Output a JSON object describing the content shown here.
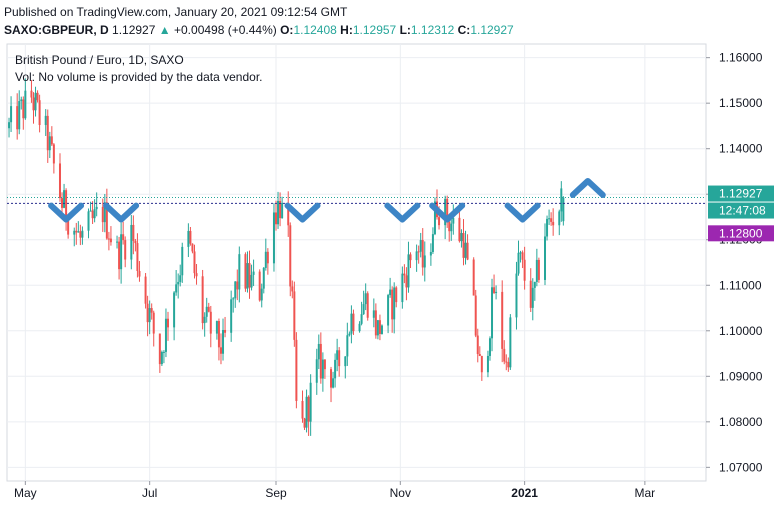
{
  "header": {
    "published": "Published on TradingView.com, January 20, 2021 09:12:54 GMT",
    "symbol": "SAXO:GBPEUR, D",
    "last": "1.12927",
    "change_arrow": "▲",
    "change": "+0.00498 (+0.44%)",
    "o_label": "O:",
    "o_value": "1.12408",
    "h_label": "H:",
    "h_value": "1.12957",
    "l_label": "L:",
    "l_value": "1.12312",
    "c_label": "C:",
    "c_value": "1.12927"
  },
  "colors": {
    "up": "#26a69a",
    "down": "#ef5350",
    "marker": "#3d85c6",
    "grid": "#ebeef2",
    "resistance": "#2a2e8f",
    "last_price_line": "#26a69a",
    "badge_purple": "#9c27b0"
  },
  "chart_data": {
    "type": "candlestick",
    "title": "British Pound / Euro, 1D, SAXO",
    "subtitle": "Vol: No volume is provided by the data vendor.",
    "ylim": [
      1.067,
      1.163
    ],
    "y_ticks": [
      "1.16000",
      "1.15000",
      "1.14000",
      "1.13000",
      "1.12000",
      "1.11000",
      "1.10000",
      "1.09000",
      "1.08000",
      "1.07000"
    ],
    "y_tick_values": [
      1.16,
      1.15,
      1.14,
      1.13,
      1.12,
      1.11,
      1.1,
      1.09,
      1.08,
      1.07
    ],
    "x_ticks": [
      "May",
      "Jul",
      "Sep",
      "Nov",
      "2021",
      "Mar"
    ],
    "x_tick_dates": [
      "2020-05-01",
      "2020-07-01",
      "2020-09-01",
      "2020-11-01",
      "2021-01-01",
      "2021-03-01"
    ],
    "x_range": [
      "2020-04-22",
      "2021-03-31"
    ],
    "last_price": "1.12927",
    "last_price_value": 1.12927,
    "countdown": "12:47:08",
    "resistance_label": "1.12800",
    "resistance_value": 1.128,
    "grid": true,
    "pivots": [
      {
        "date": "2020-04-23",
        "price": 1.1445
      },
      {
        "date": "2020-05-04",
        "price": 1.1515
      },
      {
        "date": "2020-05-12",
        "price": 1.142
      },
      {
        "date": "2020-05-19",
        "price": 1.128
      },
      {
        "date": "2020-05-28",
        "price": 1.12
      },
      {
        "date": "2020-06-08",
        "price": 1.1265
      },
      {
        "date": "2020-06-15",
        "price": 1.117
      },
      {
        "date": "2020-06-22",
        "price": 1.122
      },
      {
        "date": "2020-06-29",
        "price": 1.107
      },
      {
        "date": "2020-07-06",
        "price": 1.094
      },
      {
        "date": "2020-07-13",
        "price": 1.11
      },
      {
        "date": "2020-07-20",
        "price": 1.12
      },
      {
        "date": "2020-07-27",
        "price": 1.103
      },
      {
        "date": "2020-08-06",
        "price": 1.096
      },
      {
        "date": "2020-08-14",
        "price": 1.113
      },
      {
        "date": "2020-08-24",
        "price": 1.109
      },
      {
        "date": "2020-08-31",
        "price": 1.126
      },
      {
        "date": "2020-09-03",
        "price": 1.128
      },
      {
        "date": "2020-09-07",
        "price": 1.119
      },
      {
        "date": "2020-09-09",
        "price": 1.105
      },
      {
        "date": "2020-09-11",
        "price": 1.083
      },
      {
        "date": "2020-09-14",
        "price": 1.079
      },
      {
        "date": "2020-09-22",
        "price": 1.093
      },
      {
        "date": "2020-09-30",
        "price": 1.09
      },
      {
        "date": "2020-10-08",
        "price": 1.103
      },
      {
        "date": "2020-10-16",
        "price": 1.107
      },
      {
        "date": "2020-10-21",
        "price": 1.1
      },
      {
        "date": "2020-10-30",
        "price": 1.108
      },
      {
        "date": "2020-11-09",
        "price": 1.119
      },
      {
        "date": "2020-11-13",
        "price": 1.113
      },
      {
        "date": "2020-11-19",
        "price": 1.128
      },
      {
        "date": "2020-11-24",
        "price": 1.125
      },
      {
        "date": "2020-12-02",
        "price": 1.12
      },
      {
        "date": "2020-12-07",
        "price": 1.104
      },
      {
        "date": "2020-12-11",
        "price": 1.088
      },
      {
        "date": "2020-12-17",
        "price": 1.109
      },
      {
        "date": "2020-12-23",
        "price": 1.092
      },
      {
        "date": "2020-12-29",
        "price": 1.116
      },
      {
        "date": "2021-01-05",
        "price": 1.106
      },
      {
        "date": "2021-01-11",
        "price": 1.122
      },
      {
        "date": "2021-01-20",
        "price": 1.1293
      }
    ],
    "markers": [
      {
        "type": "v",
        "date": "2020-05-21",
        "price": 1.1275
      },
      {
        "type": "v",
        "date": "2020-06-17",
        "price": 1.1275
      },
      {
        "type": "v",
        "date": "2020-09-14",
        "price": 1.1275
      },
      {
        "type": "v",
        "date": "2020-11-02",
        "price": 1.1275
      },
      {
        "type": "v",
        "date": "2020-11-24",
        "price": 1.1275
      },
      {
        "type": "v",
        "date": "2020-12-31",
        "price": 1.1275
      },
      {
        "type": "caret",
        "date": "2021-02-01",
        "price": 1.1305
      }
    ]
  }
}
